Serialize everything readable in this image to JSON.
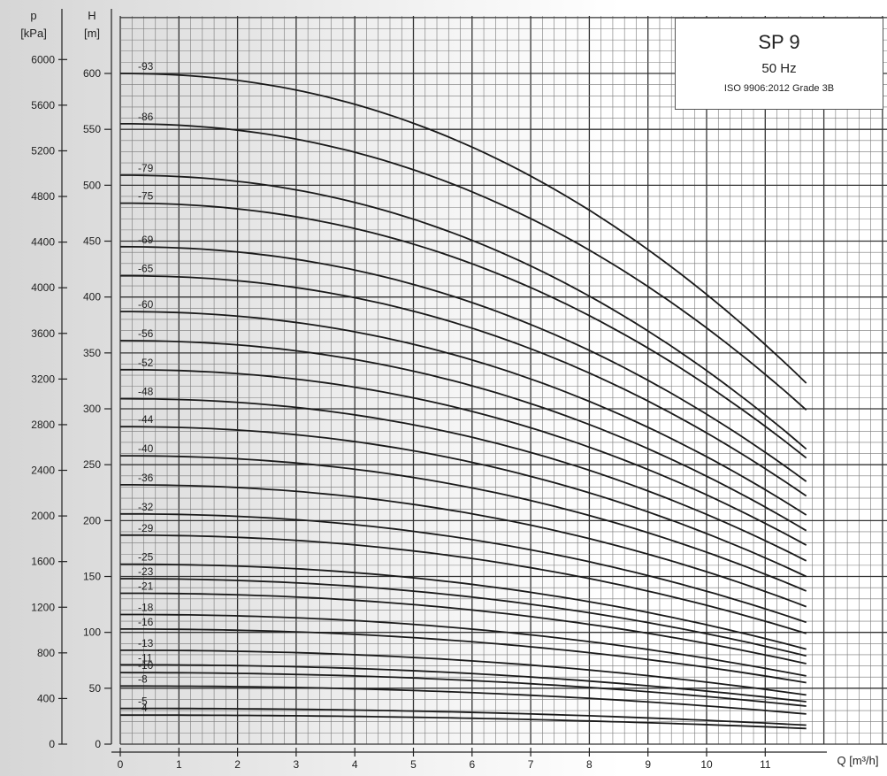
{
  "chart_data": {
    "type": "line",
    "title": "SP 9",
    "subtitle": "50 Hz",
    "standard": "ISO 9906:2012 Grade 3B",
    "xlabel": "Q [m³/h]",
    "ylabel_left_name": "H",
    "ylabel_left_unit": "[m]",
    "ylabel_outer_name": "p",
    "ylabel_outer_unit": "[kPa]",
    "xlim": [
      0,
      12.3
    ],
    "ylim": [
      0,
      630
    ],
    "plim_kpa": [
      0,
      6180
    ],
    "x_ticks": [
      0,
      1,
      2,
      3,
      4,
      5,
      6,
      7,
      8,
      9,
      10,
      11
    ],
    "y_ticks": [
      0,
      50,
      100,
      150,
      200,
      250,
      300,
      350,
      400,
      450,
      500,
      550,
      600
    ],
    "p_ticks": [
      0,
      400,
      800,
      1200,
      1600,
      2000,
      2400,
      2800,
      3200,
      3600,
      4000,
      4400,
      4800,
      5200,
      5600,
      6000
    ],
    "grid": true,
    "x_max_curve": 11.7,
    "series": [
      {
        "name": "-93",
        "shutoff_head": 600,
        "end_head": 323
      },
      {
        "name": "-86",
        "shutoff_head": 555,
        "end_head": 299
      },
      {
        "name": "-79",
        "shutoff_head": 509,
        "end_head": 264
      },
      {
        "name": "-75",
        "shutoff_head": 484,
        "end_head": 256
      },
      {
        "name": "-69",
        "shutoff_head": 445,
        "end_head": 235
      },
      {
        "name": "-65",
        "shutoff_head": 419,
        "end_head": 222
      },
      {
        "name": "-60",
        "shutoff_head": 387,
        "end_head": 205
      },
      {
        "name": "-56",
        "shutoff_head": 361,
        "end_head": 191
      },
      {
        "name": "-52",
        "shutoff_head": 335,
        "end_head": 178
      },
      {
        "name": "-48",
        "shutoff_head": 309,
        "end_head": 164
      },
      {
        "name": "-44",
        "shutoff_head": 284,
        "end_head": 150
      },
      {
        "name": "-40",
        "shutoff_head": 258,
        "end_head": 137
      },
      {
        "name": "-36",
        "shutoff_head": 232,
        "end_head": 123
      },
      {
        "name": "-32",
        "shutoff_head": 206,
        "end_head": 109
      },
      {
        "name": "-29",
        "shutoff_head": 187,
        "end_head": 99
      },
      {
        "name": "-25",
        "shutoff_head": 161,
        "end_head": 85
      },
      {
        "name": "-23",
        "shutoff_head": 148,
        "end_head": 79
      },
      {
        "name": "-21",
        "shutoff_head": 135,
        "end_head": 72
      },
      {
        "name": "-18",
        "shutoff_head": 116,
        "end_head": 61
      },
      {
        "name": "-16",
        "shutoff_head": 103,
        "end_head": 55
      },
      {
        "name": "-13",
        "shutoff_head": 84,
        "end_head": 44
      },
      {
        "name": "-11",
        "shutoff_head": 71,
        "end_head": 38
      },
      {
        "name": "-10",
        "shutoff_head": 64,
        "end_head": 34
      },
      {
        "name": "-8",
        "shutoff_head": 52,
        "end_head": 27
      },
      {
        "name": "-5",
        "shutoff_head": 32,
        "end_head": 17
      },
      {
        "name": "-4",
        "shutoff_head": 26,
        "end_head": 14
      }
    ]
  }
}
